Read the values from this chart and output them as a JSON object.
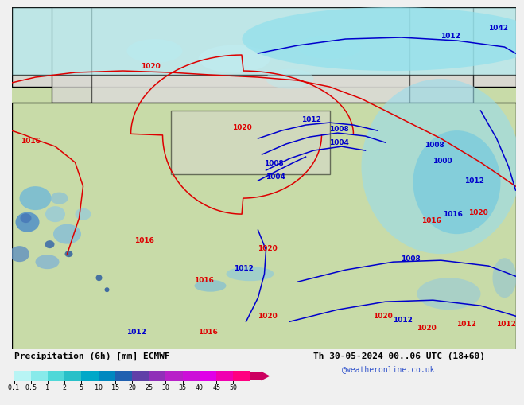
{
  "title_left": "Precipitation (6h) [mm] ECMWF",
  "title_right": "Th 30-05-2024 00..06 UTC (18+60)",
  "credit": "@weatheronline.co.uk",
  "colorbar_colors": [
    "#b8f4f4",
    "#88eaea",
    "#50d8d8",
    "#28c0c8",
    "#00a8c8",
    "#0088c0",
    "#2060b0",
    "#6040a8",
    "#9030b8",
    "#b820c8",
    "#cc10d8",
    "#e000e8",
    "#f000b0",
    "#ff0080"
  ],
  "colorbar_labels": [
    "0.1",
    "0.5",
    "1",
    "2",
    "5",
    "10",
    "15",
    "20",
    "25",
    "30",
    "35",
    "40",
    "45",
    "50"
  ],
  "land_color": "#c8dba8",
  "sea_color": "#c8dba8",
  "precip_light": "#b0eef0",
  "precip_med": "#80d8e8",
  "precip_dark": "#4090c0",
  "bg_gray": "#d0d0d0",
  "label_red": "#dd0000",
  "label_blue": "#0000cc"
}
